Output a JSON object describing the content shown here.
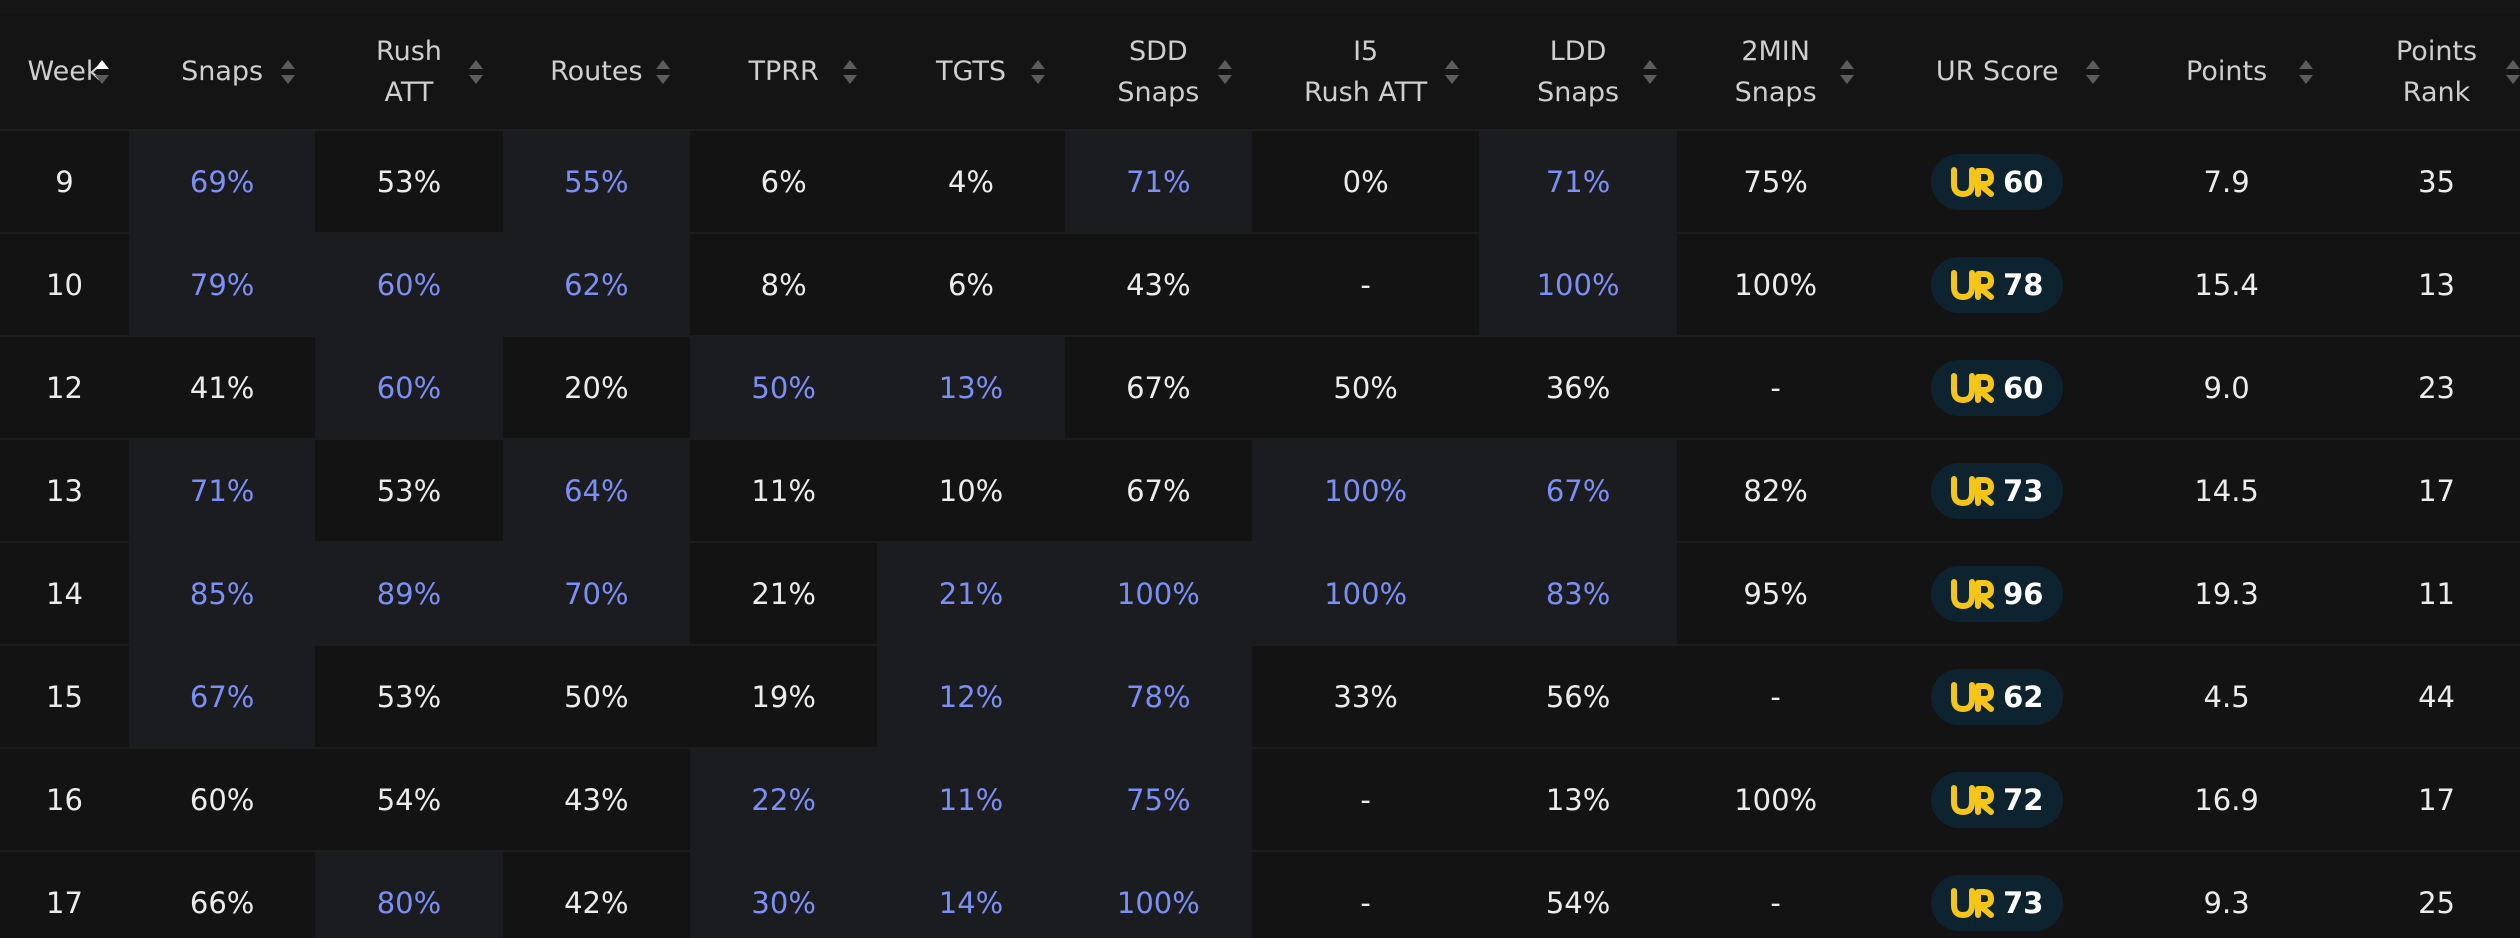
{
  "colors": {
    "background": "#131313",
    "highlight_cell": "#1b1c1f",
    "highlight_text": "#7c8ff5",
    "normal_text": "#ececec",
    "header_text": "#cfcfcf",
    "badge_bg": "#0d2430",
    "badge_logo": "#f5c518"
  },
  "icons": {
    "sort_default": "sort-both-icon",
    "sort_asc": "sort-asc-icon",
    "ur_logo": "ur-logo-icon"
  },
  "columns": [
    {
      "key": "week",
      "lines": [
        "Week"
      ],
      "sorted": "asc"
    },
    {
      "key": "snaps",
      "lines": [
        "Snaps"
      ]
    },
    {
      "key": "rush_att",
      "lines": [
        "Rush",
        "ATT"
      ]
    },
    {
      "key": "routes",
      "lines": [
        "Routes"
      ]
    },
    {
      "key": "tprr",
      "lines": [
        "TPRR"
      ]
    },
    {
      "key": "tgts",
      "lines": [
        "TGTS"
      ]
    },
    {
      "key": "sdd_snaps",
      "lines": [
        "SDD",
        "Snaps"
      ]
    },
    {
      "key": "i5_rush_att",
      "lines": [
        "I5",
        "Rush ATT"
      ]
    },
    {
      "key": "ldd_snaps",
      "lines": [
        "LDD",
        "Snaps"
      ]
    },
    {
      "key": "two_min_snaps",
      "lines": [
        "2MIN",
        "Snaps"
      ]
    },
    {
      "key": "ur_score",
      "lines": [
        "UR Score"
      ]
    },
    {
      "key": "points",
      "lines": [
        "Points"
      ]
    },
    {
      "key": "points_rank",
      "lines": [
        "Points",
        "Rank"
      ]
    }
  ],
  "rows": [
    {
      "week": "9",
      "cells": [
        {
          "v": "69%",
          "hl": true
        },
        {
          "v": "53%",
          "hl": false
        },
        {
          "v": "55%",
          "hl": true
        },
        {
          "v": "6%",
          "hl": false
        },
        {
          "v": "4%",
          "hl": false
        },
        {
          "v": "71%",
          "hl": true
        },
        {
          "v": "0%",
          "hl": false
        },
        {
          "v": "71%",
          "hl": true
        },
        {
          "v": "75%",
          "hl": false
        }
      ],
      "ur_score": "60",
      "points": "7.9",
      "points_rank": "35"
    },
    {
      "week": "10",
      "cells": [
        {
          "v": "79%",
          "hl": true
        },
        {
          "v": "60%",
          "hl": true
        },
        {
          "v": "62%",
          "hl": true
        },
        {
          "v": "8%",
          "hl": false
        },
        {
          "v": "6%",
          "hl": false
        },
        {
          "v": "43%",
          "hl": false
        },
        {
          "v": "-",
          "hl": false
        },
        {
          "v": "100%",
          "hl": true
        },
        {
          "v": "100%",
          "hl": false
        }
      ],
      "ur_score": "78",
      "points": "15.4",
      "points_rank": "13"
    },
    {
      "week": "12",
      "cells": [
        {
          "v": "41%",
          "hl": false
        },
        {
          "v": "60%",
          "hl": true
        },
        {
          "v": "20%",
          "hl": false
        },
        {
          "v": "50%",
          "hl": true
        },
        {
          "v": "13%",
          "hl": true
        },
        {
          "v": "67%",
          "hl": false
        },
        {
          "v": "50%",
          "hl": false
        },
        {
          "v": "36%",
          "hl": false
        },
        {
          "v": "-",
          "hl": false
        }
      ],
      "ur_score": "60",
      "points": "9.0",
      "points_rank": "23"
    },
    {
      "week": "13",
      "cells": [
        {
          "v": "71%",
          "hl": true
        },
        {
          "v": "53%",
          "hl": false
        },
        {
          "v": "64%",
          "hl": true
        },
        {
          "v": "11%",
          "hl": false
        },
        {
          "v": "10%",
          "hl": false
        },
        {
          "v": "67%",
          "hl": false
        },
        {
          "v": "100%",
          "hl": true
        },
        {
          "v": "67%",
          "hl": true
        },
        {
          "v": "82%",
          "hl": false
        }
      ],
      "ur_score": "73",
      "points": "14.5",
      "points_rank": "17"
    },
    {
      "week": "14",
      "cells": [
        {
          "v": "85%",
          "hl": true
        },
        {
          "v": "89%",
          "hl": true
        },
        {
          "v": "70%",
          "hl": true
        },
        {
          "v": "21%",
          "hl": false
        },
        {
          "v": "21%",
          "hl": true
        },
        {
          "v": "100%",
          "hl": true
        },
        {
          "v": "100%",
          "hl": true
        },
        {
          "v": "83%",
          "hl": true
        },
        {
          "v": "95%",
          "hl": false
        }
      ],
      "ur_score": "96",
      "points": "19.3",
      "points_rank": "11"
    },
    {
      "week": "15",
      "cells": [
        {
          "v": "67%",
          "hl": true
        },
        {
          "v": "53%",
          "hl": false
        },
        {
          "v": "50%",
          "hl": false
        },
        {
          "v": "19%",
          "hl": false
        },
        {
          "v": "12%",
          "hl": true
        },
        {
          "v": "78%",
          "hl": true
        },
        {
          "v": "33%",
          "hl": false
        },
        {
          "v": "56%",
          "hl": false
        },
        {
          "v": "-",
          "hl": false
        }
      ],
      "ur_score": "62",
      "points": "4.5",
      "points_rank": "44"
    },
    {
      "week": "16",
      "cells": [
        {
          "v": "60%",
          "hl": false
        },
        {
          "v": "54%",
          "hl": false
        },
        {
          "v": "43%",
          "hl": false
        },
        {
          "v": "22%",
          "hl": true
        },
        {
          "v": "11%",
          "hl": true
        },
        {
          "v": "75%",
          "hl": true
        },
        {
          "v": "-",
          "hl": false
        },
        {
          "v": "13%",
          "hl": false
        },
        {
          "v": "100%",
          "hl": false
        }
      ],
      "ur_score": "72",
      "points": "16.9",
      "points_rank": "17"
    },
    {
      "week": "17",
      "cells": [
        {
          "v": "66%",
          "hl": false
        },
        {
          "v": "80%",
          "hl": true
        },
        {
          "v": "42%",
          "hl": false
        },
        {
          "v": "30%",
          "hl": true
        },
        {
          "v": "14%",
          "hl": true
        },
        {
          "v": "100%",
          "hl": true
        },
        {
          "v": "-",
          "hl": false
        },
        {
          "v": "54%",
          "hl": false
        },
        {
          "v": "-",
          "hl": false
        }
      ],
      "ur_score": "73",
      "points": "9.3",
      "points_rank": "25"
    }
  ]
}
